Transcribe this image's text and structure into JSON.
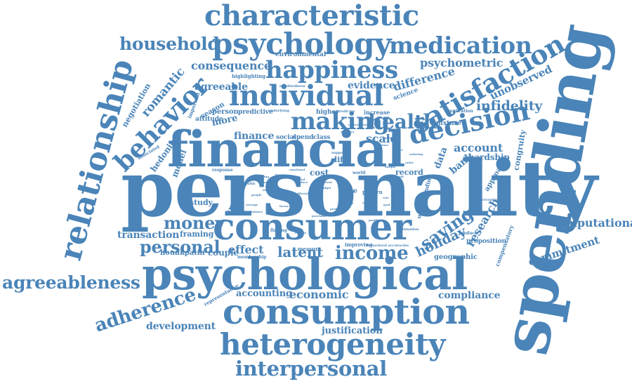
{
  "cloud": {
    "color": "#4a84b8",
    "background": "#ffffff",
    "words": {
      "personality": "personality",
      "spending": "spending",
      "financial": "financial",
      "consumer": "consumer",
      "psychological": "psychological",
      "consumption": "consumption",
      "heterogeneity": "heterogeneity",
      "characteristic": "characteristic",
      "psychology": "psychology",
      "medication": "medication",
      "happiness": "happiness",
      "individual": "individual",
      "satisfaction": "satisfaction",
      "decision": "decision",
      "making": "making",
      "relationship": "relationship",
      "behavior": "behavior",
      "household": "household",
      "agreeableness": "agreeableness",
      "adherence": "adherence",
      "interpersonal": "interpersonal",
      "personal": "personal",
      "money": "money",
      "income": "income",
      "latent": "latent",
      "health": "health",
      "infidelity": "infidelity",
      "romantic": "romantic",
      "consequence": "consequence",
      "psychometric": "psychometric",
      "unobserved": "unobserved",
      "evidence": "evidence",
      "difference": "difference",
      "agreeable": "agreeable",
      "account": "account",
      "saving": "saving",
      "holiday": "holiday",
      "research": "research",
      "computational": "computational",
      "commitment": "commitment",
      "compliance": "compliance",
      "economic": "economic",
      "accounting": "accounting",
      "development": "development",
      "justification": "justification",
      "transaction": "transaction",
      "framing": "framing",
      "couple": "couple",
      "hounkpatin": "hounkpatin",
      "effect": "effect",
      "study": "study",
      "finance": "finance",
      "trait": "trait",
      "scale": "scale",
      "hedonic": "hedonic",
      "model": "model",
      "negotiation": "negotiation",
      "bank": "bank",
      "hardship": "hardship",
      "data": "data",
      "congruity": "congruity",
      "approach": "approach",
      "geographic": "geographic",
      "proposition": "proposition",
      "compensatory": "compensatory",
      "environmental": "environmental",
      "highlighting": "highlighting",
      "science": "science",
      "more": "more",
      "season": "season",
      "person": "person",
      "attitude": "attitude",
      "predictive": "predictive",
      "higher": "higher",
      "increase": "increase",
      "mixture": "mixture",
      "implication": "implication",
      "social": "social",
      "spend": "spend",
      "class": "class",
      "life": "life",
      "cost": "cost",
      "record": "record",
      "style": "style",
      "pattern": "pattern",
      "measure": "measure",
      "improving": "improving",
      "behavioral_accuracies": "behavioral accuracies",
      "membership": "membership",
      "representative": "representative",
      "associated": "associated",
      "important": "important",
      "understanding": "understanding",
      "intervention": "intervention",
      "product": "product",
      "estimation": "estimation",
      "response": "response",
      "predictor": "predictor",
      "world": "world",
      "need": "need",
      "finding": "finding",
      "indebtedness": "indebtedness",
      "underlying": "underlying",
      "support": "support",
      "buyer": "buyer",
      "inferred": "inferred",
      "capture": "capture",
      "target": "target",
      "cash": "cash",
      "result": "result",
      "wealth": "wealth",
      "average": "average",
      "value": "value",
      "accuracy": "accuracy",
      "domain": "domain",
      "positive": "positive",
      "reduce": "reduce",
      "lifestyle": "lifestyle",
      "conscientious": "conscientious",
      "ordering": "ordering",
      "unique": "unique",
      "marketing": "marketing",
      "emotional": "emotional",
      "digital": "digital",
      "content": "content",
      "budget": "budget",
      "profile": "profile",
      "factor": "factor",
      "balance": "balance",
      "people": "people",
      "outcome": "outcome",
      "retail": "retail",
      "control": "control",
      "impulsive": "impulsive",
      "rational": "rational",
      "behaviour": "behaviour",
      "purchase": "purchase",
      "choice": "choice",
      "desire": "desire",
      "rate": "rate",
      "order": "order",
      "goal": "goal"
    }
  }
}
